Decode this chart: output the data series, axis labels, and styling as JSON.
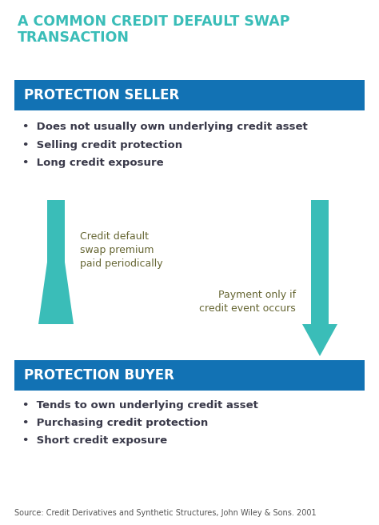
{
  "title_line1": "A COMMON CREDIT DEFAULT SWAP",
  "title_line2": "TRANSACTION",
  "title_color": "#3abdb8",
  "title_fontsize": 12.5,
  "title_fontweight": "bold",
  "banner_color": "#1272b4",
  "banner_text_color": "#ffffff",
  "banner_fontsize": 12,
  "seller_banner_text": "PROTECTION SELLER",
  "buyer_banner_text": "PROTECTION BUYER",
  "seller_bullets": [
    "Does not usually own underlying credit asset",
    "Selling credit protection",
    "Long credit exposure"
  ],
  "buyer_bullets": [
    "Tends to own underlying credit asset",
    "Purchasing credit protection",
    "Short credit exposure"
  ],
  "bullet_fontsize": 9.5,
  "bullet_color": "#3a3a4a",
  "arrow_color": "#3abdb8",
  "left_arrow_label": "Credit default\nswap premium\npaid periodically",
  "right_arrow_label": "Payment only if\ncredit event occurs",
  "arrow_label_fontsize": 9,
  "arrow_label_color": "#666633",
  "source_text": "Source: Credit Derivatives and Synthetic Structures, John Wiley & Sons. 2001",
  "source_fontsize": 7,
  "background_color": "#ffffff"
}
